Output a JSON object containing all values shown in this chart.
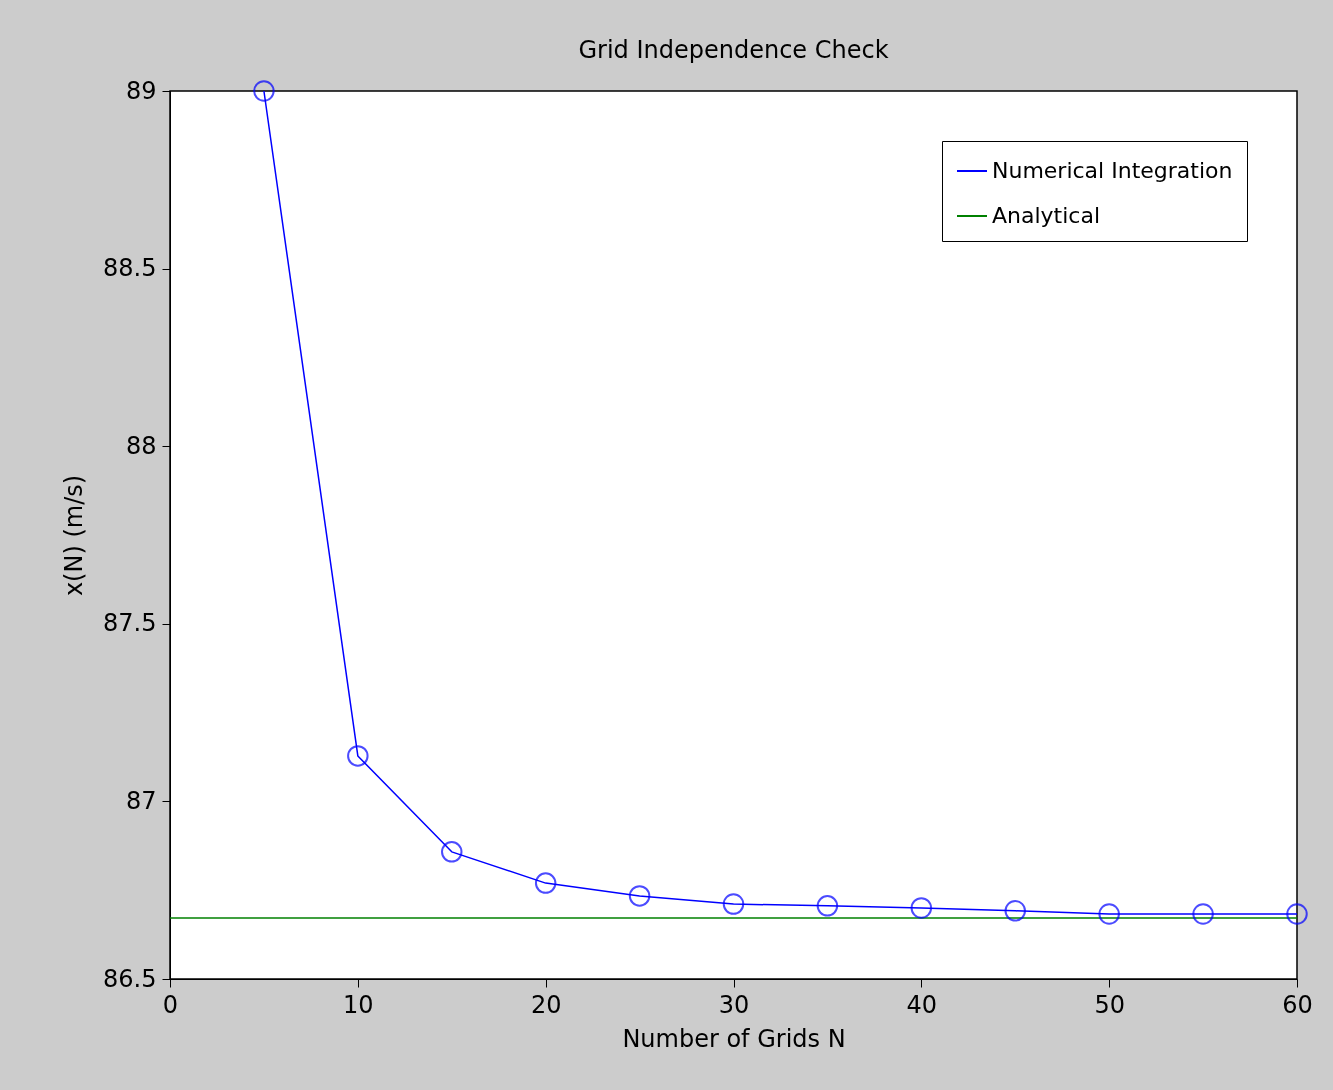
{
  "chart_data": {
    "type": "line",
    "title": "Grid Independence Check",
    "xlabel": "Number of Grids N",
    "ylabel": "x(N) (m/s)",
    "series": [
      {
        "name": "Numerical Integration",
        "color": "#0000ff",
        "marker": "circle",
        "x": [
          5,
          10,
          15,
          20,
          25,
          30,
          35,
          40,
          45,
          50,
          55,
          60
        ],
        "values": [
          89.0,
          87.128,
          86.858,
          86.77,
          86.734,
          86.711,
          86.706,
          86.7,
          86.692,
          86.683,
          86.683,
          86.683
        ]
      },
      {
        "name": "Analytical",
        "color": "#008000",
        "marker": "none",
        "x": [
          0,
          60
        ],
        "values": [
          86.672,
          86.672
        ]
      }
    ],
    "xlim": [
      0,
      60
    ],
    "xticks": [
      0,
      10,
      20,
      30,
      40,
      50,
      60
    ],
    "ylim": [
      86.5,
      89
    ],
    "yticks": [
      86.5,
      87,
      87.5,
      88,
      88.5,
      89
    ],
    "grid": false,
    "legend": "top right",
    "line_style": "solid"
  }
}
